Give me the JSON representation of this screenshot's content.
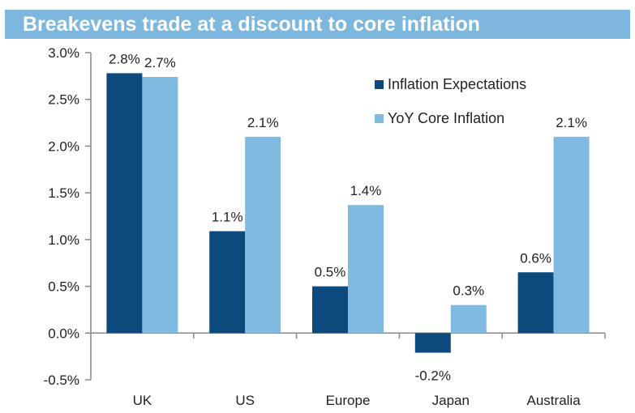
{
  "chart_data": {
    "type": "bar",
    "title": "Breakevens trade at a discount to core inflation",
    "categories": [
      "UK",
      "US",
      "Europe",
      "Japan",
      "Australia"
    ],
    "series": [
      {
        "name": "Inflation Expectations",
        "color": "#0c4a7e",
        "values": [
          2.78,
          1.09,
          0.5,
          -0.21,
          0.65
        ],
        "labels": [
          "2.8%",
          "1.1%",
          "0.5%",
          "-0.2%",
          "0.6%"
        ]
      },
      {
        "name": "YoY Core Inflation",
        "color": "#7fbbe1",
        "values": [
          2.74,
          2.1,
          1.37,
          0.3,
          2.1
        ],
        "labels": [
          "2.7%",
          "2.1%",
          "1.4%",
          "0.3%",
          "2.1%"
        ]
      }
    ],
    "yticks": [
      -0.5,
      0.0,
      0.5,
      1.0,
      1.5,
      2.0,
      2.5,
      3.0
    ],
    "ytick_labels": [
      "-0.5%",
      "0.0%",
      "0.5%",
      "1.0%",
      "1.5%",
      "2.0%",
      "2.5%",
      "3.0%"
    ],
    "ylim": [
      -0.5,
      3.0
    ],
    "xlabel": "",
    "ylabel": "",
    "grid": false,
    "legend_position": "top-right"
  }
}
